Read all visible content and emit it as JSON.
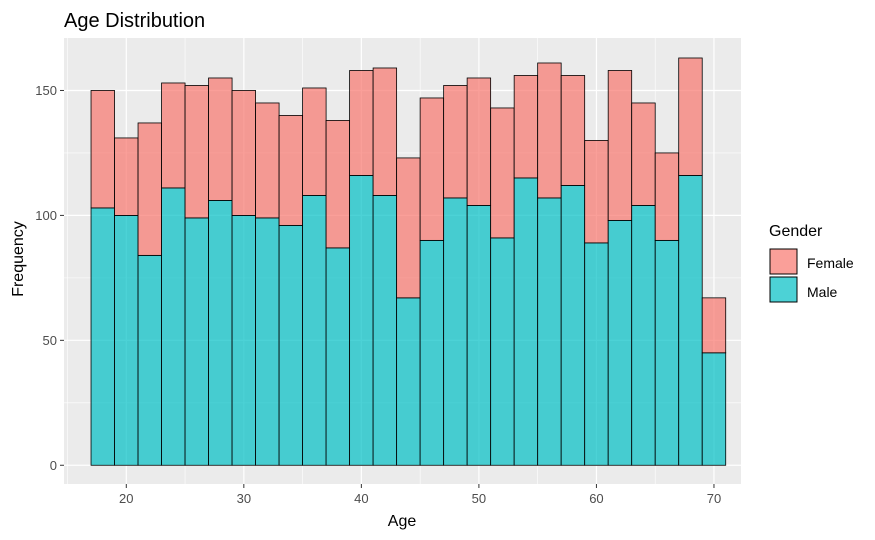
{
  "chart_data": {
    "type": "bar",
    "stacked": true,
    "title": "Age Distribution",
    "xlabel": "Age",
    "ylabel": "Frequency",
    "bin_width": 2,
    "x": [
      18,
      20,
      22,
      24,
      26,
      28,
      30,
      32,
      34,
      36,
      38,
      40,
      42,
      44,
      46,
      48,
      50,
      52,
      54,
      56,
      58,
      60,
      62,
      64,
      66,
      68,
      70
    ],
    "series": [
      {
        "name": "Male",
        "color": "#00bfc4",
        "values": [
          103,
          100,
          84,
          111,
          99,
          106,
          100,
          99,
          96,
          108,
          87,
          116,
          108,
          67,
          90,
          107,
          104,
          91,
          115,
          107,
          112,
          89,
          98,
          104,
          90,
          116,
          45
        ]
      },
      {
        "name": "Female",
        "color": "#f8766d",
        "values": [
          47,
          31,
          53,
          42,
          53,
          49,
          50,
          46,
          44,
          43,
          51,
          42,
          51,
          56,
          57,
          45,
          51,
          52,
          41,
          54,
          44,
          41,
          60,
          41,
          35,
          47,
          22
        ]
      }
    ],
    "xlim": [
      14.7,
      72.3
    ],
    "ylim": [
      -7.5,
      171
    ],
    "x_ticks": [
      20,
      30,
      40,
      50,
      60,
      70
    ],
    "y_ticks": [
      0,
      50,
      100,
      150
    ],
    "grid": true,
    "legend": {
      "title": "Gender",
      "position": "right",
      "entries": [
        {
          "label": "Female",
          "color": "#f8766d"
        },
        {
          "label": "Male",
          "color": "#00bfc4"
        }
      ]
    }
  }
}
